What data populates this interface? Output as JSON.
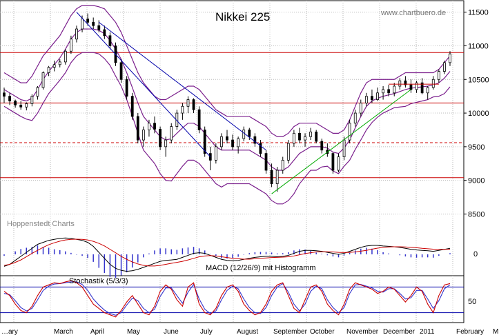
{
  "chart_data": {
    "type": "candlestick",
    "title": "Nikkei 225",
    "watermark": "www.chartbuero.de",
    "source_label": "Hoppenstedt Charts",
    "y_axis": {
      "range": [
        8300,
        11650
      ],
      "ticks": [
        {
          "value": 8500,
          "label": "8500"
        },
        {
          "value": 9000,
          "label": "9000"
        },
        {
          "value": 9500,
          "label": "9500"
        },
        {
          "value": 10000,
          "label": "10000"
        },
        {
          "value": 10500,
          "label": "10500"
        },
        {
          "value": 11000,
          "label": "11000"
        },
        {
          "value": 11500,
          "label": "11500"
        }
      ],
      "grid": true
    },
    "x_axis": {
      "months": [
        "…ary",
        "March",
        "April",
        "May",
        "June",
        "July",
        "August",
        "September",
        "October",
        "November",
        "December",
        "2011",
        "February",
        "M…"
      ]
    },
    "horizontal_lines": [
      {
        "value": 10900,
        "style": "solid",
        "color": "#cc0000"
      },
      {
        "value": 10150,
        "style": "solid",
        "color": "#cc0000"
      },
      {
        "value": 9560,
        "style": "dashed",
        "color": "#cc0000"
      },
      {
        "value": 9040,
        "style": "solid",
        "color": "#cc0000"
      }
    ],
    "price_candles": [
      [
        0,
        10300,
        10380,
        10150,
        10250
      ],
      [
        1,
        10250,
        10300,
        10120,
        10180
      ],
      [
        2,
        10180,
        10200,
        10080,
        10120
      ],
      [
        3,
        10120,
        10180,
        10050,
        10090
      ],
      [
        4,
        10090,
        10160,
        10040,
        10140
      ],
      [
        5,
        10140,
        10280,
        10100,
        10250
      ],
      [
        6,
        10250,
        10400,
        10200,
        10380
      ],
      [
        7,
        10380,
        10620,
        10350,
        10600
      ],
      [
        8,
        10600,
        10700,
        10550,
        10680
      ],
      [
        9,
        10680,
        10780,
        10620,
        10720
      ],
      [
        10,
        10720,
        10800,
        10680,
        10760
      ],
      [
        11,
        10760,
        10950,
        10720,
        10920
      ],
      [
        12,
        10920,
        11150,
        10880,
        11100
      ],
      [
        13,
        11100,
        11300,
        11050,
        11250
      ],
      [
        14,
        11250,
        11450,
        11200,
        11400
      ],
      [
        15,
        11400,
        11480,
        11300,
        11350
      ],
      [
        16,
        11350,
        11420,
        11250,
        11300
      ],
      [
        17,
        11300,
        11380,
        11200,
        11240
      ],
      [
        18,
        11240,
        11300,
        11100,
        11150
      ],
      [
        19,
        11150,
        11200,
        10950,
        11000
      ],
      [
        20,
        11000,
        11050,
        10700,
        10750
      ],
      [
        21,
        10750,
        10800,
        10450,
        10500
      ],
      [
        22,
        10500,
        10550,
        10200,
        10250
      ],
      [
        23,
        10250,
        10300,
        9900,
        9950
      ],
      [
        24,
        9950,
        10000,
        9550,
        9600
      ],
      [
        25,
        9600,
        9800,
        9500,
        9750
      ],
      [
        26,
        9750,
        9900,
        9650,
        9850
      ],
      [
        27,
        9850,
        9950,
        9700,
        9760
      ],
      [
        28,
        9760,
        9800,
        9450,
        9500
      ],
      [
        29,
        9500,
        9650,
        9350,
        9600
      ],
      [
        30,
        9600,
        9850,
        9550,
        9800
      ],
      [
        31,
        9800,
        10050,
        9750,
        10000
      ],
      [
        32,
        10000,
        10150,
        9900,
        10100
      ],
      [
        33,
        10100,
        10250,
        10000,
        10200
      ],
      [
        34,
        10200,
        10220,
        10000,
        10050
      ],
      [
        35,
        10050,
        10100,
        9700,
        9750
      ],
      [
        36,
        9750,
        9800,
        9350,
        9400
      ],
      [
        37,
        9400,
        9500,
        9150,
        9300
      ],
      [
        38,
        9300,
        9550,
        9250,
        9500
      ],
      [
        39,
        9500,
        9700,
        9450,
        9650
      ],
      [
        40,
        9650,
        9750,
        9550,
        9600
      ],
      [
        41,
        9600,
        9680,
        9450,
        9500
      ],
      [
        42,
        9500,
        9650,
        9400,
        9620
      ],
      [
        43,
        9620,
        9800,
        9580,
        9750
      ],
      [
        44,
        9750,
        9780,
        9600,
        9650
      ],
      [
        45,
        9650,
        9700,
        9500,
        9550
      ],
      [
        46,
        9550,
        9600,
        9350,
        9400
      ],
      [
        47,
        9400,
        9450,
        9100,
        9150
      ],
      [
        48,
        9150,
        9250,
        8900,
        8950
      ],
      [
        49,
        8950,
        9200,
        8830,
        9150
      ],
      [
        50,
        9150,
        9350,
        9100,
        9300
      ],
      [
        51,
        9300,
        9600,
        9250,
        9550
      ],
      [
        52,
        9550,
        9750,
        9500,
        9700
      ],
      [
        53,
        9700,
        9780,
        9550,
        9600
      ],
      [
        54,
        9600,
        9700,
        9500,
        9650
      ],
      [
        55,
        9650,
        9780,
        9600,
        9720
      ],
      [
        56,
        9720,
        9750,
        9550,
        9580
      ],
      [
        57,
        9580,
        9620,
        9400,
        9450
      ],
      [
        58,
        9450,
        9550,
        9350,
        9400
      ],
      [
        59,
        9400,
        9420,
        9100,
        9150
      ],
      [
        60,
        9150,
        9400,
        9120,
        9350
      ],
      [
        61,
        9350,
        9650,
        9300,
        9600
      ],
      [
        62,
        9600,
        9900,
        9550,
        9850
      ],
      [
        63,
        9850,
        10050,
        9800,
        10000
      ],
      [
        64,
        10000,
        10200,
        9950,
        10150
      ],
      [
        65,
        10150,
        10300,
        10100,
        10250
      ],
      [
        66,
        10250,
        10350,
        10150,
        10200
      ],
      [
        67,
        10200,
        10380,
        10180,
        10300
      ],
      [
        68,
        10300,
        10400,
        10200,
        10350
      ],
      [
        69,
        10350,
        10420,
        10250,
        10300
      ],
      [
        70,
        10300,
        10450,
        10250,
        10400
      ],
      [
        71,
        10400,
        10520,
        10350,
        10480
      ],
      [
        72,
        10480,
        10550,
        10380,
        10420
      ],
      [
        73,
        10420,
        10500,
        10300,
        10350
      ],
      [
        74,
        10350,
        10480,
        10300,
        10450
      ],
      [
        75,
        10450,
        10520,
        10280,
        10300
      ],
      [
        76,
        10300,
        10400,
        10200,
        10380
      ],
      [
        77,
        10380,
        10550,
        10350,
        10500
      ],
      [
        78,
        10500,
        10650,
        10450,
        10620
      ],
      [
        79,
        10620,
        10780,
        10580,
        10750
      ],
      [
        80,
        10750,
        10920,
        10700,
        10880
      ]
    ],
    "bollinger": {
      "upper": [
        10600,
        10550,
        10500,
        10450,
        10450,
        10550,
        10700,
        10850,
        10950,
        11050,
        11150,
        11300,
        11450,
        11550,
        11600,
        11600,
        11600,
        11580,
        11550,
        11450,
        11350,
        11200,
        11000,
        10800,
        10600,
        10450,
        10350,
        10250,
        10200,
        10200,
        10250,
        10300,
        10350,
        10400,
        10400,
        10350,
        10250,
        10150,
        10050,
        10000,
        9950,
        9950,
        9950,
        9950,
        9950,
        9900,
        9850,
        9800,
        9700,
        9650,
        9650,
        9700,
        9800,
        9850,
        9850,
        9850,
        9850,
        9800,
        9750,
        9700,
        9700,
        9750,
        9900,
        10100,
        10300,
        10450,
        10500,
        10500,
        10500,
        10500,
        10500,
        10550,
        10600,
        10600,
        10600,
        10600,
        10600,
        10600,
        10650,
        10750,
        10850
      ],
      "middle": [
        10350,
        10300,
        10250,
        10200,
        10180,
        10220,
        10350,
        10500,
        10620,
        10720,
        10820,
        10950,
        11100,
        11200,
        11250,
        11250,
        11250,
        11230,
        11180,
        11080,
        10950,
        10800,
        10600,
        10380,
        10150,
        9950,
        9850,
        9750,
        9650,
        9600,
        9620,
        9700,
        9780,
        9850,
        9850,
        9800,
        9700,
        9600,
        9500,
        9450,
        9450,
        9450,
        9450,
        9450,
        9450,
        9400,
        9350,
        9300,
        9200,
        9150,
        9150,
        9200,
        9300,
        9400,
        9450,
        9500,
        9500,
        9500,
        9480,
        9420,
        9400,
        9480,
        9600,
        9780,
        9950,
        10100,
        10180,
        10220,
        10250,
        10270,
        10290,
        10320,
        10350,
        10370,
        10380,
        10390,
        10400,
        10420,
        10450,
        10520,
        10620
      ],
      "lower": [
        10100,
        10050,
        10000,
        9950,
        9910,
        9890,
        10000,
        10150,
        10290,
        10390,
        10490,
        10600,
        10750,
        10850,
        10900,
        10900,
        10900,
        10880,
        10810,
        10710,
        10550,
        10400,
        10200,
        9960,
        9700,
        9450,
        9350,
        9250,
        9100,
        9000,
        8990,
        9100,
        9210,
        9300,
        9300,
        9250,
        9150,
        9050,
        8950,
        8900,
        8950,
        8950,
        8950,
        8950,
        8950,
        8900,
        8850,
        8800,
        8700,
        8650,
        8650,
        8700,
        8800,
        8950,
        9050,
        9150,
        9150,
        9200,
        9210,
        9140,
        9100,
        9210,
        9300,
        9460,
        9600,
        9750,
        9860,
        9940,
        10000,
        10040,
        10080,
        10090,
        10100,
        10140,
        10160,
        10180,
        10200,
        10240,
        10250,
        10290,
        10390
      ]
    },
    "trendlines": [
      {
        "from": [
          13,
          11500
        ],
        "to": [
          37,
          9350
        ],
        "color": "#0000aa"
      },
      {
        "from": [
          17,
          11350
        ],
        "to": [
          47,
          9450
        ],
        "color": "#0000aa"
      },
      {
        "from": [
          48,
          8800
        ],
        "to": [
          73,
          10350
        ],
        "color": "#00aa00"
      },
      {
        "from": [
          69,
          10430
        ],
        "to": [
          78,
          10430
        ],
        "color": "#cc0000"
      }
    ],
    "macd": {
      "label": "MACD (12/26/9) mit Histogramm",
      "zero_label": "0",
      "macd_line": [
        -60,
        -50,
        -30,
        -10,
        10,
        30,
        50,
        60,
        70,
        75,
        80,
        82,
        80,
        75,
        70,
        60,
        40,
        10,
        -20,
        -50,
        -70,
        -80,
        -85,
        -82,
        -75,
        -65,
        -55,
        -45,
        -35,
        -30,
        -28,
        -25,
        -15,
        -5,
        5,
        8,
        5,
        -5,
        -15,
        -25,
        -30,
        -32,
        -30,
        -25,
        -20,
        -15,
        -12,
        -10,
        -10,
        -12,
        -10,
        -5,
        5,
        15,
        20,
        20,
        18,
        15,
        10,
        5,
        0,
        5,
        15,
        25,
        35,
        42,
        45,
        45,
        42,
        40,
        38,
        35,
        30,
        25,
        22,
        20,
        18,
        15,
        20,
        25,
        30
      ],
      "signal_line": [
        -55,
        -50,
        -40,
        -28,
        -12,
        5,
        20,
        35,
        48,
        58,
        66,
        72,
        75,
        76,
        75,
        72,
        65,
        55,
        42,
        25,
        8,
        -10,
        -25,
        -38,
        -48,
        -55,
        -58,
        -58,
        -55,
        -50,
        -45,
        -40,
        -35,
        -28,
        -20,
        -12,
        -8,
        -6,
        -8,
        -12,
        -16,
        -20,
        -22,
        -24,
        -24,
        -22,
        -20,
        -18,
        -16,
        -15,
        -14,
        -12,
        -8,
        -2,
        4,
        8,
        12,
        13,
        13,
        12,
        10,
        9,
        10,
        12,
        16,
        20,
        26,
        31,
        35,
        37,
        38,
        38,
        37,
        35,
        33,
        30,
        28,
        26,
        25,
        25,
        26
      ],
      "y_range": [
        -100,
        100
      ]
    },
    "stochastic": {
      "label": "Stochastik (5/3/3)",
      "tick_label": "50",
      "k": [
        70,
        60,
        40,
        25,
        20,
        35,
        60,
        80,
        85,
        90,
        88,
        92,
        95,
        90,
        80,
        60,
        40,
        30,
        20,
        15,
        10,
        25,
        45,
        60,
        40,
        20,
        15,
        35,
        70,
        85,
        75,
        50,
        35,
        80,
        90,
        40,
        20,
        15,
        30,
        60,
        80,
        85,
        70,
        40,
        25,
        15,
        20,
        40,
        70,
        85,
        90,
        60,
        30,
        20,
        50,
        80,
        85,
        70,
        40,
        25,
        15,
        40,
        75,
        90,
        85,
        80,
        75,
        65,
        70,
        80,
        75,
        60,
        45,
        60,
        80,
        70,
        40,
        20,
        60,
        85,
        88
      ],
      "d": [
        65,
        62,
        48,
        32,
        24,
        30,
        50,
        72,
        82,
        87,
        88,
        90,
        92,
        92,
        86,
        72,
        52,
        38,
        26,
        18,
        14,
        20,
        38,
        54,
        48,
        30,
        20,
        28,
        58,
        78,
        78,
        60,
        42,
        68,
        86,
        52,
        28,
        18,
        24,
        50,
        72,
        82,
        76,
        52,
        32,
        20,
        18,
        32,
        60,
        80,
        88,
        68,
        40,
        24,
        40,
        70,
        82,
        76,
        50,
        32,
        20,
        32,
        65,
        85,
        86,
        82,
        78,
        70,
        68,
        76,
        76,
        65,
        52,
        55,
        72,
        72,
        52,
        30,
        48,
        76,
        85
      ],
      "y_range": [
        0,
        100
      ],
      "levels": [
        80,
        20
      ]
    }
  }
}
